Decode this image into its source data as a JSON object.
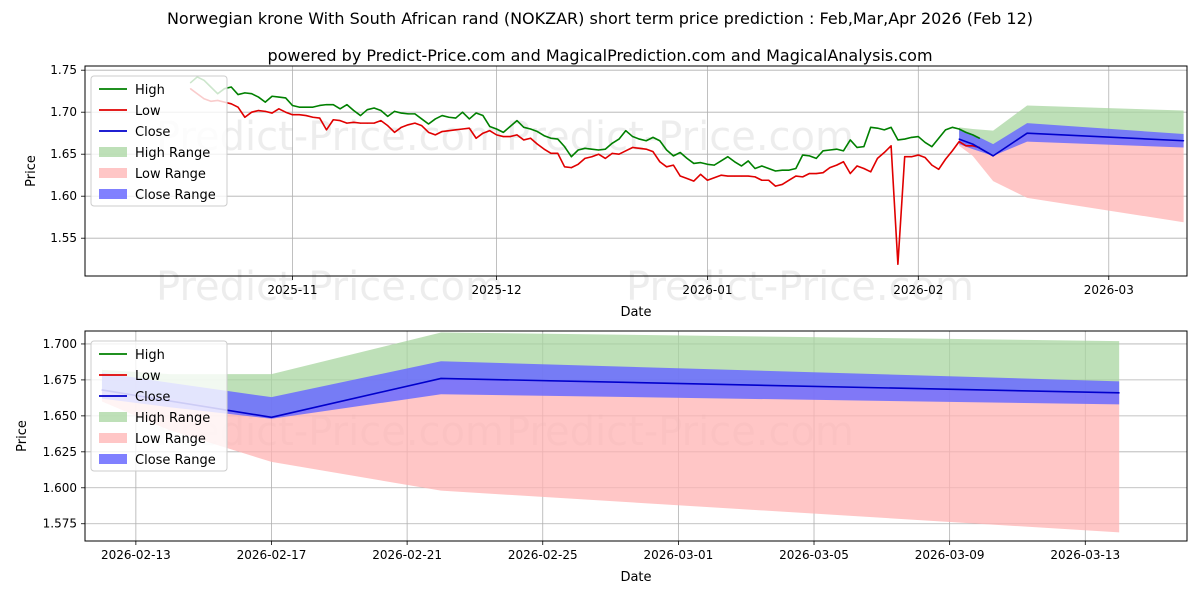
{
  "header": {
    "title": "Norwegian krone With South African rand (NOKZAR) short term price prediction : Feb,Mar,Apr 2026 (Feb 12)",
    "subtitle": "powered by Predict-Price.com and MagicalPrediction.com and MagicalAnalysis.com"
  },
  "watermark": "Predict-Price.com",
  "colors": {
    "high": "#008000",
    "low": "#e00000",
    "close": "#0000cc",
    "high_range": "#a8d5a0",
    "low_range": "#ffb3b3",
    "close_range": "#6a6aff",
    "grid": "#b0b0b0"
  },
  "chart_data": [
    {
      "type": "line",
      "ylabel": "Price",
      "xlabel": "Date",
      "ylim": [
        1.505,
        1.755
      ],
      "xlim_days": [
        -15.5,
        146.5
      ],
      "x_origin_date": "2025-10-17",
      "xticks": [
        {
          "day": 15,
          "label": "2025-11"
        },
        {
          "day": 45,
          "label": "2025-12"
        },
        {
          "day": 76,
          "label": "2026-01"
        },
        {
          "day": 107,
          "label": "2026-02"
        },
        {
          "day": 135,
          "label": "2026-03"
        }
      ],
      "yticks": [
        1.55,
        1.6,
        1.65,
        1.7,
        1.75
      ],
      "ytick_labels": [
        "1.55",
        "1.60",
        "1.65",
        "1.70",
        "1.75"
      ],
      "legend": [
        "High",
        "Low",
        "Close",
        "High Range",
        "Low Range",
        "Close Range"
      ],
      "series": [
        {
          "name": "High",
          "x": [
            0,
            1,
            2,
            3,
            4,
            5,
            6,
            7,
            8,
            9,
            10,
            11,
            12,
            13,
            14,
            15,
            16,
            17,
            18,
            19,
            20,
            21,
            22,
            23,
            24,
            25,
            26,
            27,
            28,
            29,
            30,
            31,
            32,
            33,
            34,
            35,
            36,
            37,
            38,
            39,
            40,
            41,
            42,
            43,
            44,
            45,
            46,
            47,
            48,
            49,
            50,
            51,
            52,
            53,
            54,
            55,
            56,
            57,
            58,
            59,
            60,
            61,
            62,
            63,
            64,
            65,
            66,
            67,
            68,
            69,
            70,
            71,
            72,
            73,
            74,
            75,
            76,
            77,
            78,
            79,
            80,
            81,
            82,
            83,
            84,
            85,
            86,
            87,
            88,
            89,
            90,
            91,
            92,
            93,
            94,
            95,
            96,
            97,
            98,
            99,
            100,
            101,
            102,
            103,
            104,
            105,
            106,
            107,
            108,
            109,
            110,
            111,
            112,
            113,
            114,
            115,
            116
          ],
          "values": [
            1.735,
            1.742,
            1.738,
            1.73,
            1.722,
            1.728,
            1.73,
            1.721,
            1.723,
            1.722,
            1.718,
            1.712,
            1.719,
            1.718,
            1.717,
            1.708,
            1.706,
            1.706,
            1.706,
            1.708,
            1.709,
            1.709,
            1.704,
            1.709,
            1.702,
            1.696,
            1.703,
            1.705,
            1.702,
            1.695,
            1.701,
            1.699,
            1.698,
            1.698,
            1.692,
            1.686,
            1.692,
            1.696,
            1.694,
            1.693,
            1.7,
            1.692,
            1.699,
            1.696,
            1.683,
            1.68,
            1.676,
            1.683,
            1.69,
            1.682,
            1.68,
            1.677,
            1.672,
            1.669,
            1.668,
            1.659,
            1.647,
            1.655,
            1.657,
            1.656,
            1.655,
            1.656,
            1.663,
            1.668,
            1.678,
            1.671,
            1.668,
            1.666,
            1.67,
            1.666,
            1.655,
            1.648,
            1.652,
            1.645,
            1.639,
            1.64,
            1.638,
            1.637,
            1.642,
            1.647,
            1.641,
            1.636,
            1.642,
            1.633,
            1.636,
            1.633,
            1.63,
            1.631,
            1.631,
            1.633,
            1.649,
            1.648,
            1.645,
            1.654,
            1.655,
            1.656,
            1.654,
            1.667,
            1.658,
            1.659,
            1.682,
            1.681,
            1.679,
            1.682,
            1.667,
            1.668,
            1.67,
            1.671,
            1.664,
            1.659,
            1.669,
            1.679,
            1.682,
            1.68,
            1.676,
            1.673,
            1.669
          ]
        },
        {
          "name": "Low",
          "x": [
            0,
            1,
            2,
            3,
            4,
            5,
            6,
            7,
            8,
            9,
            10,
            11,
            12,
            13,
            14,
            15,
            16,
            17,
            18,
            19,
            20,
            21,
            22,
            23,
            24,
            25,
            26,
            27,
            28,
            29,
            30,
            31,
            32,
            33,
            34,
            35,
            36,
            37,
            38,
            39,
            40,
            41,
            42,
            43,
            44,
            45,
            46,
            47,
            48,
            49,
            50,
            51,
            52,
            53,
            54,
            55,
            56,
            57,
            58,
            59,
            60,
            61,
            62,
            63,
            64,
            65,
            66,
            67,
            68,
            69,
            70,
            71,
            72,
            73,
            74,
            75,
            76,
            77,
            78,
            79,
            80,
            81,
            82,
            83,
            84,
            85,
            86,
            87,
            88,
            89,
            90,
            91,
            92,
            93,
            94,
            95,
            96,
            97,
            98,
            99,
            100,
            101,
            102,
            103,
            104,
            105,
            106,
            107,
            108,
            109,
            110,
            111,
            112,
            113,
            114,
            115,
            116
          ],
          "values": [
            1.728,
            1.722,
            1.716,
            1.713,
            1.714,
            1.712,
            1.71,
            1.706,
            1.694,
            1.7,
            1.702,
            1.701,
            1.699,
            1.704,
            1.7,
            1.697,
            1.697,
            1.696,
            1.694,
            1.693,
            1.679,
            1.691,
            1.69,
            1.687,
            1.688,
            1.687,
            1.687,
            1.687,
            1.69,
            1.684,
            1.676,
            1.682,
            1.685,
            1.687,
            1.684,
            1.676,
            1.673,
            1.677,
            1.678,
            1.679,
            1.68,
            1.681,
            1.669,
            1.675,
            1.678,
            1.673,
            1.671,
            1.671,
            1.673,
            1.667,
            1.669,
            1.662,
            1.656,
            1.651,
            1.651,
            1.635,
            1.634,
            1.638,
            1.645,
            1.647,
            1.65,
            1.645,
            1.651,
            1.65,
            1.654,
            1.658,
            1.657,
            1.656,
            1.653,
            1.641,
            1.635,
            1.637,
            1.624,
            1.621,
            1.618,
            1.626,
            1.619,
            1.622,
            1.625,
            1.624,
            1.624,
            1.624,
            1.624,
            1.623,
            1.619,
            1.619,
            1.612,
            1.614,
            1.619,
            1.624,
            1.623,
            1.627,
            1.627,
            1.628,
            1.634,
            1.637,
            1.641,
            1.627,
            1.636,
            1.633,
            1.629,
            1.645,
            1.652,
            1.66,
            1.519,
            1.647,
            1.647,
            1.649,
            1.646,
            1.637,
            1.632,
            1.644,
            1.654,
            1.665,
            1.66,
            1.66,
            1.658
          ]
        },
        {
          "name": "Close",
          "x": [
            113,
            115,
            118,
            123,
            146
          ],
          "values": [
            1.668,
            1.662,
            1.648,
            1.675,
            1.666
          ]
        }
      ],
      "ranges": [
        {
          "name": "High Range",
          "x": [
            113,
            115,
            118,
            123,
            146
          ],
          "upper": [
            1.682,
            1.68,
            1.678,
            1.708,
            1.702
          ],
          "lower": [
            1.668,
            1.662,
            1.648,
            1.675,
            1.666
          ]
        },
        {
          "name": "Low Range",
          "x": [
            113,
            115,
            118,
            123,
            146
          ],
          "upper": [
            1.668,
            1.662,
            1.648,
            1.675,
            1.666
          ],
          "lower": [
            1.66,
            1.648,
            1.618,
            1.598,
            1.569
          ]
        },
        {
          "name": "Close Range",
          "x": [
            113,
            115,
            118,
            123,
            146
          ],
          "upper": [
            1.68,
            1.674,
            1.662,
            1.687,
            1.674
          ],
          "lower": [
            1.662,
            1.656,
            1.648,
            1.665,
            1.658
          ]
        }
      ]
    },
    {
      "type": "line",
      "ylabel": "Price",
      "xlabel": "Date",
      "ylim": [
        1.563,
        1.709
      ],
      "xlim_days": [
        -1.5,
        31
      ],
      "x_origin_date": "2026-02-13",
      "xticks": [
        {
          "day": 0,
          "label": "2026-02-13"
        },
        {
          "day": 4,
          "label": "2026-02-17"
        },
        {
          "day": 8,
          "label": "2026-02-21"
        },
        {
          "day": 12,
          "label": "2026-02-25"
        },
        {
          "day": 16,
          "label": "2026-03-01"
        },
        {
          "day": 20,
          "label": "2026-03-05"
        },
        {
          "day": 24,
          "label": "2026-03-09"
        },
        {
          "day": 28,
          "label": "2026-03-13"
        }
      ],
      "yticks": [
        1.575,
        1.6,
        1.625,
        1.65,
        1.675,
        1.7
      ],
      "ytick_labels": [
        "1.575",
        "1.600",
        "1.625",
        "1.650",
        "1.675",
        "1.700"
      ],
      "legend": [
        "High",
        "Low",
        "Close",
        "High Range",
        "Low Range",
        "Close Range"
      ],
      "series": [
        {
          "name": "Close",
          "x": [
            -1,
            4,
            9,
            29
          ],
          "values": [
            1.668,
            1.649,
            1.676,
            1.666
          ]
        }
      ],
      "ranges": [
        {
          "name": "High Range",
          "x": [
            -1,
            1,
            4,
            9,
            29
          ],
          "upper": [
            1.682,
            1.679,
            1.679,
            1.708,
            1.702
          ],
          "lower": [
            1.668,
            1.662,
            1.649,
            1.676,
            1.666
          ]
        },
        {
          "name": "Low Range",
          "x": [
            -1,
            1,
            4,
            9,
            29
          ],
          "upper": [
            1.668,
            1.662,
            1.649,
            1.676,
            1.666
          ],
          "lower": [
            1.66,
            1.64,
            1.618,
            1.598,
            1.569
          ]
        },
        {
          "name": "Close Range",
          "x": [
            -1,
            1,
            4,
            9,
            29
          ],
          "upper": [
            1.68,
            1.673,
            1.663,
            1.688,
            1.674
          ],
          "lower": [
            1.662,
            1.656,
            1.648,
            1.665,
            1.658
          ]
        }
      ]
    }
  ]
}
